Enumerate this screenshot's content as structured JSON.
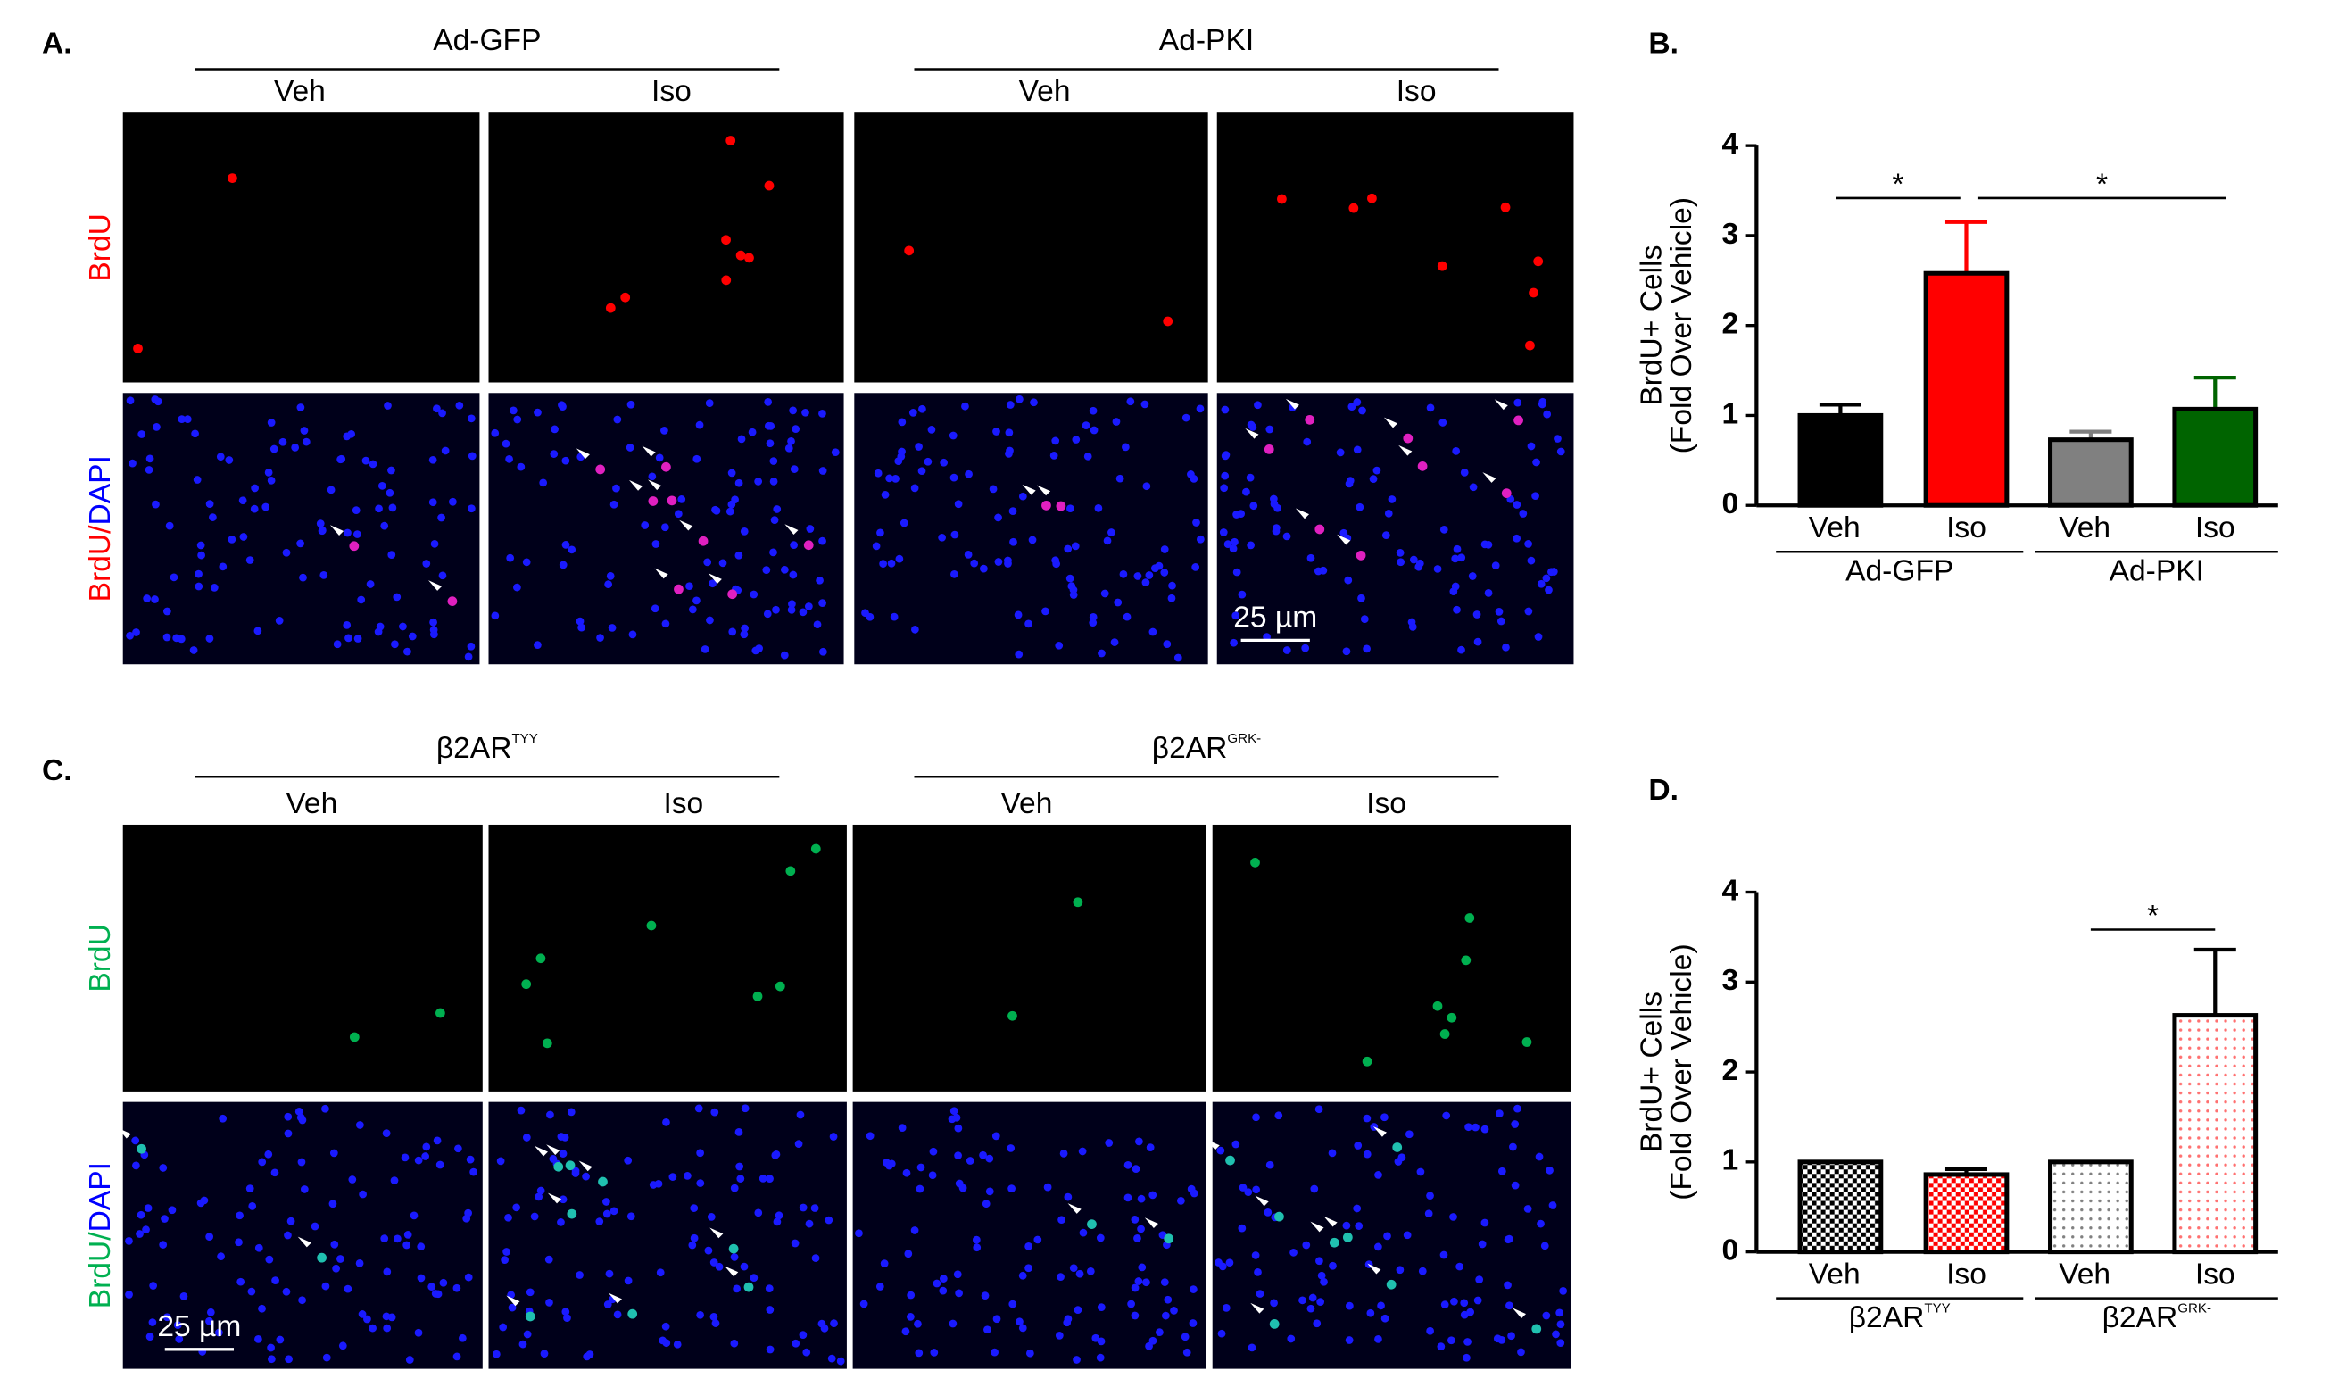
{
  "figure": {
    "A": {
      "label": "A.",
      "groups": [
        "Ad-GFP",
        "Ad-PKI"
      ],
      "conditions": [
        "Veh",
        "Iso",
        "Veh",
        "Iso"
      ],
      "row_labels": [
        [
          "BrdU"
        ],
        [
          "BrdU/",
          "DAPI"
        ]
      ],
      "scale_bar": "25 µm"
    },
    "C": {
      "label": "C.",
      "groups": [
        {
          "text": "β2AR",
          "sup": "TYY"
        },
        {
          "text": "β2AR",
          "sup": "GRK-"
        }
      ],
      "conditions": [
        "Veh",
        "Iso",
        "Veh",
        "Iso"
      ],
      "row_labels": [
        [
          "BrdU"
        ],
        [
          "BrdU/",
          "DAPI"
        ]
      ],
      "scale_bar": "25 µm"
    }
  },
  "chart_data": [
    {
      "type": "bar",
      "label": "B.",
      "ylabel": [
        "BrdU+ Cells",
        "(Fold Over Vehicle)"
      ],
      "categories": [
        "Veh",
        "Iso",
        "Veh",
        "Iso"
      ],
      "groups": [
        "Ad-GFP",
        "Ad-PKI"
      ],
      "values": [
        1.0,
        2.58,
        0.73,
        1.07
      ],
      "errors": [
        0.12,
        0.57,
        0.09,
        0.35
      ],
      "colors": [
        "#000000",
        "#ff0000",
        "#808080",
        "#006400"
      ],
      "patterns": [
        "solid",
        "solid",
        "solid",
        "solid"
      ],
      "ylim": [
        0,
        4
      ],
      "yticks": [
        0,
        1,
        2,
        3,
        4
      ],
      "annotations": [
        "*",
        "*"
      ]
    },
    {
      "type": "bar",
      "label": "D.",
      "ylabel": [
        "BrdU+ Cells",
        "(Fold Over Vehicle)"
      ],
      "categories": [
        "Veh",
        "Iso",
        "Veh",
        "Iso"
      ],
      "groups": [
        {
          "text": "β2AR",
          "sup": "TYY"
        },
        {
          "text": "β2AR",
          "sup": "GRK-"
        }
      ],
      "values": [
        1.0,
        0.86,
        1.0,
        2.63
      ],
      "errors": [
        0,
        0.06,
        0,
        0.73
      ],
      "colors": [
        "#000000",
        "#ff0000",
        "#808080",
        "#ff7070"
      ],
      "patterns": [
        "checker",
        "checker",
        "dots",
        "dots"
      ],
      "ylim": [
        0,
        4
      ],
      "yticks": [
        0,
        1,
        2,
        3,
        4
      ],
      "annotations": [
        "*"
      ]
    }
  ]
}
